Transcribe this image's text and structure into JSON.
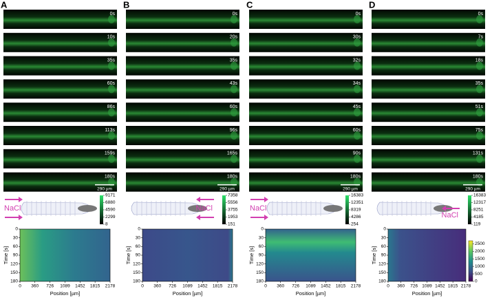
{
  "panels": [
    {
      "label": "A",
      "times": [
        "0s",
        "10s",
        "35s",
        "60s",
        "86s",
        "113s",
        "159s",
        "180s"
      ],
      "scale_bar": "290 µm",
      "stimulus": "NaCl",
      "intensity_ticks": [
        9171,
        6880,
        4590,
        2299,
        8
      ]
    },
    {
      "label": "B",
      "times": [
        "0s",
        "20s",
        "35s",
        "43s",
        "60s",
        "96s",
        "165s",
        "180s"
      ],
      "scale_bar": "290 µm",
      "stimulus": "NaCl",
      "intensity_ticks": [
        7358,
        5556,
        3755,
        1953,
        151
      ]
    },
    {
      "label": "C",
      "times": [
        "0s",
        "30s",
        "32s",
        "34s",
        "45s",
        "60s",
        "90s",
        "180s"
      ],
      "scale_bar": "290 µm",
      "stimulus": "NaCl",
      "intensity_ticks": [
        16383,
        12351,
        8319,
        4286,
        254
      ]
    },
    {
      "label": "D",
      "times": [
        "0s",
        "7s",
        "18s",
        "35s",
        "51s",
        "75s",
        "131s",
        "180s"
      ],
      "scale_bar": "290 µm",
      "stimulus": "NaCl",
      "intensity_ticks": [
        16383,
        12317,
        8251,
        4185,
        119
      ]
    }
  ],
  "heatmap_axes": {
    "xlabel": "Position [µm]",
    "ylabel": "Time [s]",
    "xlim": [
      0,
      2178
    ],
    "xticks": [
      0,
      360,
      726,
      1089,
      1452,
      1815,
      2178
    ],
    "ylim": [
      0,
      180
    ],
    "yticks": [
      0,
      30,
      60,
      90,
      120,
      150,
      180
    ]
  },
  "colorbar": {
    "lim": [
      0,
      2700
    ],
    "ticks": [
      0,
      500,
      1000,
      1500,
      2000,
      2500
    ]
  }
}
